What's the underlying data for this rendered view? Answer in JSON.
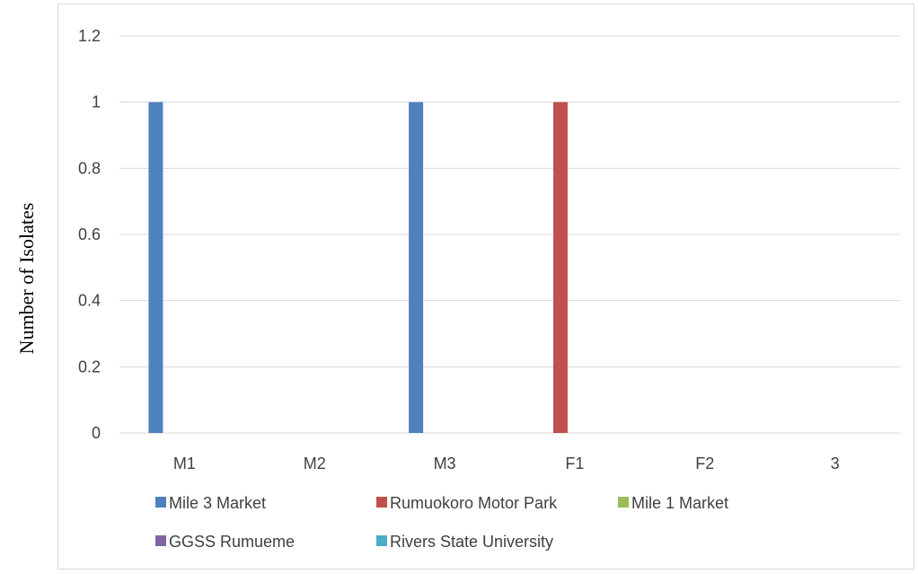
{
  "chart_data": {
    "type": "bar",
    "ylabel": "Number of Isolates",
    "xlabel": "",
    "title": "",
    "categories": [
      "M1",
      "M2",
      "M3",
      "F1",
      "F2",
      "3"
    ],
    "ylim": [
      0,
      1.2
    ],
    "yticks": [
      "0",
      "0.2",
      "0.4",
      "0.6",
      "0.8",
      "1",
      "1.2"
    ],
    "grid": true,
    "legend_position": "bottom",
    "series": [
      {
        "name": "Mile 3 Market",
        "color": "#4f81bd",
        "values": [
          1,
          0,
          1,
          0,
          0,
          0
        ]
      },
      {
        "name": "Rumuokoro Motor Park",
        "color": "#c0504d",
        "values": [
          0,
          0,
          0,
          1,
          0,
          0
        ]
      },
      {
        "name": "Mile 1 Market",
        "color": "#9bbb59",
        "values": [
          0,
          0,
          0,
          0,
          0,
          0
        ]
      },
      {
        "name": "GGSS Rumueme",
        "color": "#8064a2",
        "values": [
          0,
          0,
          0,
          0,
          0,
          0
        ]
      },
      {
        "name": "Rivers State University",
        "color": "#4bacc6",
        "values": [
          0,
          0,
          0,
          0,
          0,
          0
        ]
      }
    ]
  }
}
